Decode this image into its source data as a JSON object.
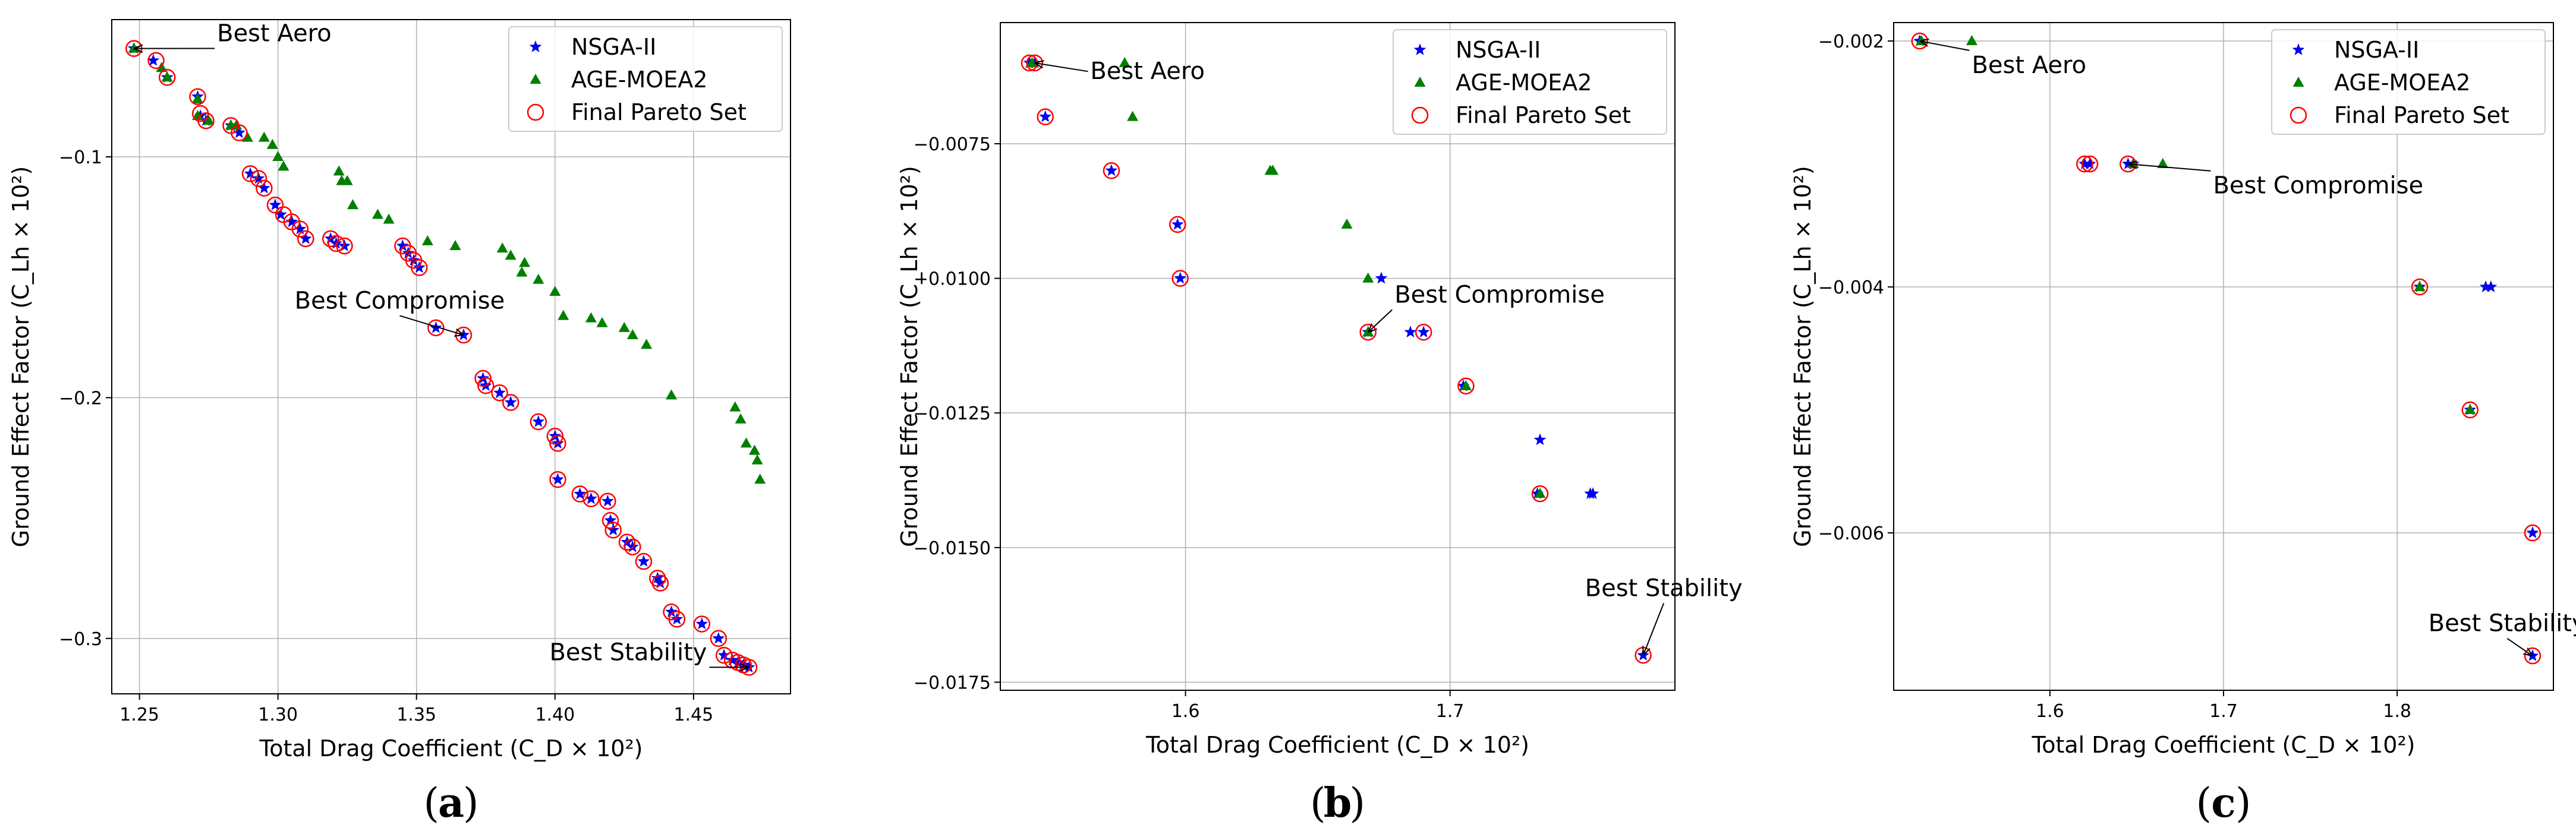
{
  "colors": {
    "nsga": "#0000ee",
    "age": "#007f00",
    "pareto": "#ff0000",
    "grid": "#b0b0b0"
  },
  "legend_labels": [
    "NSGA-II",
    "AGE-MOEA2",
    "Final Pareto Set"
  ],
  "panel_labels": [
    "a",
    "b",
    "c"
  ],
  "chart_data": [
    {
      "type": "scatter",
      "panel": "a",
      "xlabel": "Total Drag Coefficient (C_D × 10²)",
      "ylabel": "Ground Effect Factor (C_Lh × 10²)",
      "xlim": [
        1.24,
        1.485
      ],
      "ylim": [
        -0.323,
        -0.043
      ],
      "xticks": [
        1.25,
        1.3,
        1.35,
        1.4,
        1.45
      ],
      "xtick_labels": [
        "1.25",
        "1.30",
        "1.35",
        "1.40",
        "1.45"
      ],
      "yticks": [
        -0.1,
        -0.2,
        -0.3
      ],
      "ytick_labels": [
        "−0.1",
        "−0.2",
        "−0.3"
      ],
      "series": [
        {
          "name": "NSGA-II",
          "points": [
            [
              1.248,
              -0.055
            ],
            [
              1.255,
              -0.06
            ],
            [
              1.26,
              -0.067
            ],
            [
              1.271,
              -0.075
            ],
            [
              1.272,
              -0.083
            ],
            [
              1.274,
              -0.085
            ],
            [
              1.283,
              -0.087
            ],
            [
              1.286,
              -0.09
            ],
            [
              1.29,
              -0.107
            ],
            [
              1.293,
              -0.109
            ],
            [
              1.295,
              -0.113
            ],
            [
              1.299,
              -0.12
            ],
            [
              1.301,
              -0.124
            ],
            [
              1.305,
              -0.127
            ],
            [
              1.308,
              -0.13
            ],
            [
              1.31,
              -0.134
            ],
            [
              1.319,
              -0.134
            ],
            [
              1.321,
              -0.136
            ],
            [
              1.324,
              -0.137
            ],
            [
              1.345,
              -0.137
            ],
            [
              1.347,
              -0.14
            ],
            [
              1.349,
              -0.143
            ],
            [
              1.351,
              -0.146
            ],
            [
              1.357,
              -0.171
            ],
            [
              1.367,
              -0.174
            ],
            [
              1.374,
              -0.192
            ],
            [
              1.375,
              -0.195
            ],
            [
              1.38,
              -0.198
            ],
            [
              1.384,
              -0.202
            ],
            [
              1.394,
              -0.21
            ],
            [
              1.4,
              -0.216
            ],
            [
              1.401,
              -0.219
            ],
            [
              1.401,
              -0.234
            ],
            [
              1.409,
              -0.24
            ],
            [
              1.413,
              -0.242
            ],
            [
              1.419,
              -0.243
            ],
            [
              1.42,
              -0.251
            ],
            [
              1.421,
              -0.255
            ],
            [
              1.426,
              -0.26
            ],
            [
              1.428,
              -0.262
            ],
            [
              1.432,
              -0.268
            ],
            [
              1.437,
              -0.275
            ],
            [
              1.438,
              -0.277
            ],
            [
              1.442,
              -0.289
            ],
            [
              1.444,
              -0.292
            ],
            [
              1.453,
              -0.294
            ],
            [
              1.459,
              -0.3
            ],
            [
              1.461,
              -0.307
            ],
            [
              1.464,
              -0.309
            ],
            [
              1.466,
              -0.31
            ],
            [
              1.468,
              -0.311
            ],
            [
              1.47,
              -0.312
            ]
          ]
        },
        {
          "name": "AGE-MOEA2",
          "points": [
            [
              1.248,
              -0.055
            ],
            [
              1.258,
              -0.063
            ],
            [
              1.26,
              -0.067
            ],
            [
              1.271,
              -0.076
            ],
            [
              1.271,
              -0.083
            ],
            [
              1.275,
              -0.085
            ],
            [
              1.283,
              -0.087
            ],
            [
              1.285,
              -0.087
            ],
            [
              1.289,
              -0.092
            ],
            [
              1.295,
              -0.092
            ],
            [
              1.298,
              -0.095
            ],
            [
              1.3,
              -0.1
            ],
            [
              1.302,
              -0.104
            ],
            [
              1.322,
              -0.106
            ],
            [
              1.323,
              -0.11
            ],
            [
              1.325,
              -0.11
            ],
            [
              1.327,
              -0.12
            ],
            [
              1.336,
              -0.124
            ],
            [
              1.34,
              -0.126
            ],
            [
              1.354,
              -0.135
            ],
            [
              1.364,
              -0.137
            ],
            [
              1.381,
              -0.138
            ],
            [
              1.384,
              -0.141
            ],
            [
              1.389,
              -0.144
            ],
            [
              1.388,
              -0.148
            ],
            [
              1.394,
              -0.151
            ],
            [
              1.4,
              -0.156
            ],
            [
              1.403,
              -0.166
            ],
            [
              1.413,
              -0.167
            ],
            [
              1.417,
              -0.169
            ],
            [
              1.425,
              -0.171
            ],
            [
              1.428,
              -0.174
            ],
            [
              1.433,
              -0.178
            ],
            [
              1.442,
              -0.199
            ],
            [
              1.465,
              -0.204
            ],
            [
              1.467,
              -0.209
            ],
            [
              1.469,
              -0.219
            ],
            [
              1.472,
              -0.222
            ],
            [
              1.473,
              -0.226
            ],
            [
              1.474,
              -0.234
            ]
          ]
        },
        {
          "name": "Final Pareto Set",
          "points": [
            [
              1.248,
              -0.055
            ],
            [
              1.256,
              -0.06
            ],
            [
              1.26,
              -0.067
            ],
            [
              1.271,
              -0.075
            ],
            [
              1.272,
              -0.082
            ],
            [
              1.274,
              -0.085
            ],
            [
              1.283,
              -0.087
            ],
            [
              1.286,
              -0.09
            ],
            [
              1.29,
              -0.107
            ],
            [
              1.293,
              -0.109
            ],
            [
              1.295,
              -0.113
            ],
            [
              1.299,
              -0.12
            ],
            [
              1.302,
              -0.124
            ],
            [
              1.305,
              -0.127
            ],
            [
              1.308,
              -0.13
            ],
            [
              1.31,
              -0.134
            ],
            [
              1.319,
              -0.134
            ],
            [
              1.321,
              -0.136
            ],
            [
              1.324,
              -0.137
            ],
            [
              1.345,
              -0.137
            ],
            [
              1.347,
              -0.14
            ],
            [
              1.349,
              -0.143
            ],
            [
              1.351,
              -0.146
            ],
            [
              1.357,
              -0.171
            ],
            [
              1.367,
              -0.174
            ],
            [
              1.374,
              -0.192
            ],
            [
              1.375,
              -0.195
            ],
            [
              1.38,
              -0.198
            ],
            [
              1.384,
              -0.202
            ],
            [
              1.394,
              -0.21
            ],
            [
              1.4,
              -0.216
            ],
            [
              1.401,
              -0.219
            ],
            [
              1.401,
              -0.234
            ],
            [
              1.409,
              -0.24
            ],
            [
              1.413,
              -0.242
            ],
            [
              1.419,
              -0.243
            ],
            [
              1.42,
              -0.251
            ],
            [
              1.421,
              -0.255
            ],
            [
              1.426,
              -0.26
            ],
            [
              1.428,
              -0.262
            ],
            [
              1.432,
              -0.268
            ],
            [
              1.437,
              -0.275
            ],
            [
              1.438,
              -0.277
            ],
            [
              1.442,
              -0.289
            ],
            [
              1.444,
              -0.292
            ],
            [
              1.453,
              -0.294
            ],
            [
              1.459,
              -0.3
            ],
            [
              1.461,
              -0.307
            ],
            [
              1.464,
              -0.309
            ],
            [
              1.466,
              -0.31
            ],
            [
              1.468,
              -0.311
            ],
            [
              1.47,
              -0.312
            ]
          ]
        }
      ],
      "annotations": [
        {
          "text": "Best Aero",
          "point": [
            1.248,
            -0.055
          ],
          "text_at": [
            1.278,
            -0.052
          ]
        },
        {
          "text": "Best Compromise",
          "point": [
            1.367,
            -0.174
          ],
          "text_at": [
            1.306,
            -0.163
          ]
        },
        {
          "text": "Best Stability",
          "point": [
            1.47,
            -0.312
          ],
          "text_at": [
            1.398,
            -0.309
          ]
        }
      ],
      "legend": "top-right"
    },
    {
      "type": "scatter",
      "panel": "b",
      "xlabel": "Total Drag Coefficient (C_D × 10²)",
      "ylabel": "Ground Effect Factor (C_Lh × 10²)",
      "xlim": [
        1.53,
        1.785
      ],
      "ylim": [
        -0.01765,
        -0.00525
      ],
      "xticks": [
        1.6,
        1.7
      ],
      "xtick_labels": [
        "1.6",
        "1.7"
      ],
      "yticks": [
        -0.0075,
        -0.01,
        -0.0125,
        -0.015,
        -0.0175
      ],
      "ytick_labels": [
        "−0.0075",
        "−0.0100",
        "−0.0125",
        "−0.0150",
        "−0.0175"
      ],
      "series": [
        {
          "name": "NSGA-II",
          "points": [
            [
              1.541,
              -0.006
            ],
            [
              1.543,
              -0.006
            ],
            [
              1.547,
              -0.007
            ],
            [
              1.572,
              -0.008
            ],
            [
              1.597,
              -0.009
            ],
            [
              1.598,
              -0.01
            ],
            [
              1.669,
              -0.011
            ],
            [
              1.674,
              -0.01
            ],
            [
              1.685,
              -0.011
            ],
            [
              1.69,
              -0.011
            ],
            [
              1.705,
              -0.012
            ],
            [
              1.734,
              -0.013
            ],
            [
              1.733,
              -0.014
            ],
            [
              1.753,
              -0.014
            ],
            [
              1.754,
              -0.014
            ],
            [
              1.773,
              -0.017
            ]
          ]
        },
        {
          "name": "AGE-MOEA2",
          "points": [
            [
              1.542,
              -0.006
            ],
            [
              1.577,
              -0.006
            ],
            [
              1.58,
              -0.007
            ],
            [
              1.632,
              -0.008
            ],
            [
              1.633,
              -0.008
            ],
            [
              1.661,
              -0.009
            ],
            [
              1.669,
              -0.01
            ],
            [
              1.669,
              -0.011
            ],
            [
              1.706,
              -0.012
            ],
            [
              1.734,
              -0.014
            ]
          ]
        },
        {
          "name": "Final Pareto Set",
          "points": [
            [
              1.541,
              -0.006
            ],
            [
              1.543,
              -0.006
            ],
            [
              1.547,
              -0.007
            ],
            [
              1.572,
              -0.008
            ],
            [
              1.597,
              -0.009
            ],
            [
              1.598,
              -0.01
            ],
            [
              1.669,
              -0.011
            ],
            [
              1.69,
              -0.011
            ],
            [
              1.706,
              -0.012
            ],
            [
              1.734,
              -0.014
            ],
            [
              1.773,
              -0.017
            ]
          ]
        }
      ],
      "annotations": [
        {
          "text": "Best Aero",
          "point": [
            1.543,
            -0.006
          ],
          "text_at": [
            1.564,
            -0.0063
          ]
        },
        {
          "text": "Best Compromise",
          "point": [
            1.669,
            -0.011
          ],
          "text_at": [
            1.679,
            -0.01045
          ]
        },
        {
          "text": "Best Stability",
          "point": [
            1.773,
            -0.017
          ],
          "text_at": [
            1.751,
            -0.0159
          ]
        }
      ],
      "legend": "top-right"
    },
    {
      "type": "scatter",
      "panel": "c",
      "xlabel": "Total Drag Coefficient (C_D × 10²)",
      "ylabel": "Ground Effect Factor (C_Lh × 10²)",
      "xlim": [
        1.51,
        1.89
      ],
      "ylim": [
        -0.00728,
        -0.00185
      ],
      "xticks": [
        1.6,
        1.7,
        1.8
      ],
      "xtick_labels": [
        "1.6",
        "1.7",
        "1.8"
      ],
      "yticks": [
        -0.002,
        -0.004,
        -0.006
      ],
      "ytick_labels": [
        "−0.002",
        "−0.004",
        "−0.006"
      ],
      "series": [
        {
          "name": "NSGA-II",
          "points": [
            [
              1.525,
              -0.002
            ],
            [
              1.62,
              -0.003
            ],
            [
              1.623,
              -0.003
            ],
            [
              1.645,
              -0.003
            ],
            [
              1.648,
              -0.003
            ],
            [
              1.813,
              -0.004
            ],
            [
              1.851,
              -0.004
            ],
            [
              1.854,
              -0.004
            ],
            [
              1.842,
              -0.005
            ],
            [
              1.878,
              -0.006
            ],
            [
              1.878,
              -0.007
            ]
          ]
        },
        {
          "name": "AGE-MOEA2",
          "points": [
            [
              1.526,
              -0.002
            ],
            [
              1.555,
              -0.002
            ],
            [
              1.648,
              -0.003
            ],
            [
              1.665,
              -0.003
            ],
            [
              1.813,
              -0.004
            ],
            [
              1.842,
              -0.005
            ]
          ]
        },
        {
          "name": "Final Pareto Set",
          "points": [
            [
              1.525,
              -0.002
            ],
            [
              1.62,
              -0.003
            ],
            [
              1.623,
              -0.003
            ],
            [
              1.645,
              -0.003
            ],
            [
              1.813,
              -0.004
            ],
            [
              1.842,
              -0.005
            ],
            [
              1.878,
              -0.006
            ],
            [
              1.878,
              -0.007
            ]
          ]
        }
      ],
      "annotations": [
        {
          "text": "Best Aero",
          "point": [
            1.525,
            -0.002
          ],
          "text_at": [
            1.555,
            -0.00226
          ]
        },
        {
          "text": "Best Compromise",
          "point": [
            1.645,
            -0.003
          ],
          "text_at": [
            1.694,
            -0.00324
          ]
        },
        {
          "text": "Best Stability",
          "point": [
            1.878,
            -0.007
          ],
          "text_at": [
            1.818,
            -0.0068
          ]
        }
      ],
      "legend": "top-right"
    }
  ]
}
